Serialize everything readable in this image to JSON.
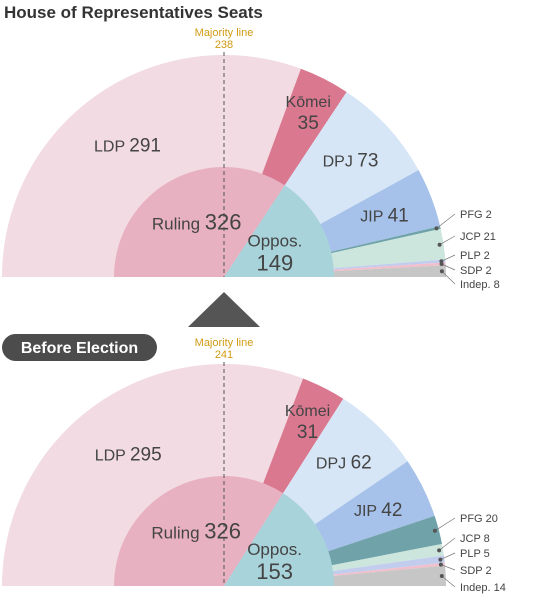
{
  "title": "House of Representatives Seats",
  "badge": "Before Election",
  "colors": {
    "LDP": "#f2dbe2",
    "Komei": "#d9788f",
    "DPJ": "#d6e6f6",
    "JIP": "#a7c2ea",
    "PFG": "#6fa3a9",
    "JCP": "#cce5dd",
    "PLP": "#c2cdee",
    "SDP": "#f0bfcb",
    "Indep": "#c6c6c6",
    "Ruling": "#e8b1c1",
    "Oppos": "#a9d3da",
    "majority": "#d19b14",
    "arrow": "#555555",
    "badge": "#4c4c4c"
  },
  "chart_data": [
    {
      "type": "pie",
      "name": "after",
      "majority": {
        "label": "Majority line",
        "value": "238"
      },
      "outer": [
        {
          "key": "LDP",
          "label": "LDP",
          "value": 291,
          "placement": "inner"
        },
        {
          "key": "Komei",
          "label": "Kōmei",
          "value": 35,
          "placement": "inner-stacked"
        },
        {
          "key": "DPJ",
          "label": "DPJ",
          "value": 73,
          "placement": "inner"
        },
        {
          "key": "JIP",
          "label": "JIP",
          "value": 41,
          "placement": "inner"
        },
        {
          "key": "PFG",
          "label": "PFG",
          "value": 2,
          "placement": "outside"
        },
        {
          "key": "JCP",
          "label": "JCP",
          "value": 21,
          "placement": "outside"
        },
        {
          "key": "PLP",
          "label": "PLP",
          "value": 2,
          "placement": "outside"
        },
        {
          "key": "SDP",
          "label": "SDP",
          "value": 2,
          "placement": "outside"
        },
        {
          "key": "Indep",
          "label": "Indep.",
          "value": 8,
          "placement": "outside"
        }
      ],
      "inner": [
        {
          "key": "Ruling",
          "label": "Ruling",
          "value": 326
        },
        {
          "key": "Oppos",
          "label": "Oppos.",
          "value": 149
        }
      ]
    },
    {
      "type": "pie",
      "name": "before",
      "majority": {
        "label": "Majority line",
        "value": "241"
      },
      "outer": [
        {
          "key": "LDP",
          "label": "LDP",
          "value": 295,
          "placement": "inner"
        },
        {
          "key": "Komei",
          "label": "Kōmei",
          "value": 31,
          "placement": "inner-stacked"
        },
        {
          "key": "DPJ",
          "label": "DPJ",
          "value": 62,
          "placement": "inner"
        },
        {
          "key": "JIP",
          "label": "JIP",
          "value": 42,
          "placement": "inner"
        },
        {
          "key": "PFG",
          "label": "PFG",
          "value": 20,
          "placement": "outside"
        },
        {
          "key": "JCP",
          "label": "JCP",
          "value": 8,
          "placement": "outside"
        },
        {
          "key": "PLP",
          "label": "PLP",
          "value": 5,
          "placement": "outside"
        },
        {
          "key": "SDP",
          "label": "SDP",
          "value": 2,
          "placement": "outside"
        },
        {
          "key": "Indep",
          "label": "Indep.",
          "value": 14,
          "placement": "outside"
        }
      ],
      "inner": [
        {
          "key": "Ruling",
          "label": "Ruling",
          "value": 326
        },
        {
          "key": "Oppos",
          "label": "Oppos.",
          "value": 153
        }
      ]
    }
  ]
}
